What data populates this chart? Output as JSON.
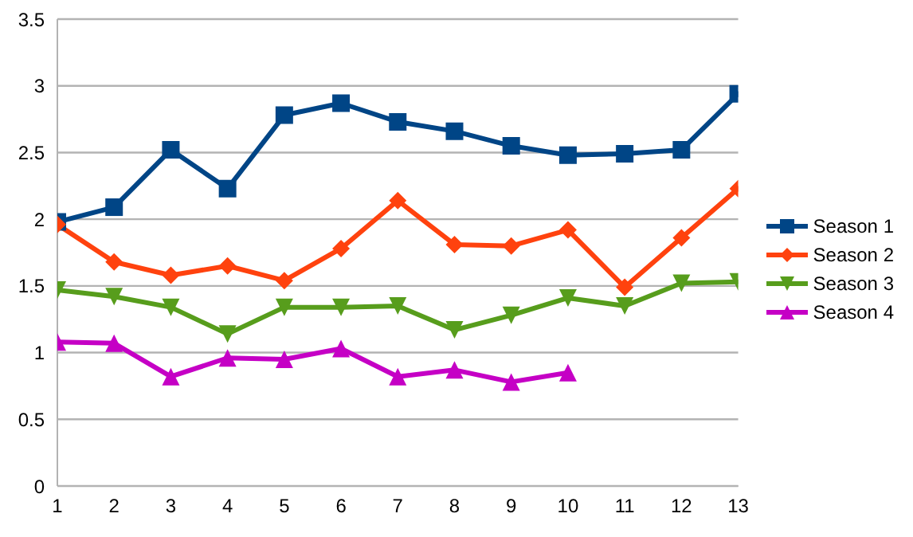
{
  "chart_data": {
    "type": "line",
    "x": [
      1,
      2,
      3,
      4,
      5,
      6,
      7,
      8,
      9,
      10,
      11,
      12,
      13
    ],
    "xlim": [
      1,
      13
    ],
    "xticks": [
      1,
      2,
      3,
      4,
      5,
      6,
      7,
      8,
      9,
      10,
      11,
      12,
      13
    ],
    "ylim": [
      0,
      3.5
    ],
    "yticks": [
      0,
      0.5,
      1,
      1.5,
      2,
      2.5,
      3,
      3.5
    ],
    "grid": "y",
    "legend": "right",
    "series": [
      {
        "name": "Season 1",
        "color": "#004586",
        "marker": "square",
        "values": [
          1.98,
          2.09,
          2.52,
          2.23,
          2.78,
          2.87,
          2.73,
          2.66,
          2.55,
          2.48,
          2.49,
          2.52,
          2.94
        ]
      },
      {
        "name": "Season 2",
        "color": "#ff420e",
        "marker": "diamond",
        "values": [
          1.96,
          1.68,
          1.58,
          1.65,
          1.54,
          1.78,
          2.14,
          1.81,
          1.8,
          1.92,
          1.49,
          1.86,
          2.23
        ]
      },
      {
        "name": "Season 3",
        "color": "#579d1c",
        "marker": "triangle-down",
        "values": [
          1.47,
          1.42,
          1.34,
          1.14,
          1.34,
          1.34,
          1.35,
          1.17,
          1.28,
          1.41,
          1.35,
          1.52,
          1.53
        ]
      },
      {
        "name": "Season 4",
        "color": "#c500c5",
        "marker": "triangle",
        "values": [
          1.08,
          1.07,
          0.82,
          0.96,
          0.95,
          1.03,
          0.82,
          0.87,
          0.78,
          0.85,
          null,
          null,
          null
        ]
      }
    ]
  }
}
